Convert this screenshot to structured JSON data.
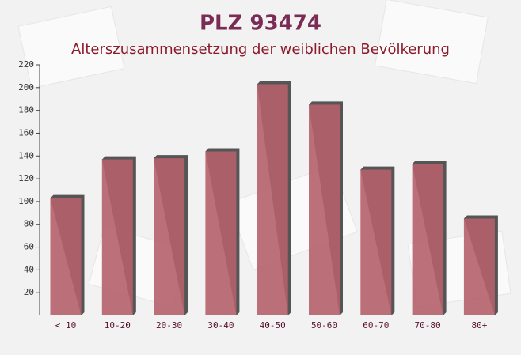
{
  "chart_data": {
    "type": "bar",
    "title": "PLZ 93474",
    "subtitle": "Alterszusammensetzung der weiblichen Bevölkerung",
    "categories": [
      "< 10",
      "10-20",
      "20-30",
      "30-40",
      "40-50",
      "50-60",
      "60-70",
      "70-80",
      "80+"
    ],
    "values": [
      103,
      137,
      138,
      144,
      203,
      185,
      128,
      133,
      85
    ],
    "color": "#b5606a",
    "ylim": [
      0,
      220
    ],
    "yticks": [
      20,
      40,
      60,
      80,
      100,
      120,
      140,
      160,
      180,
      200,
      220
    ]
  }
}
